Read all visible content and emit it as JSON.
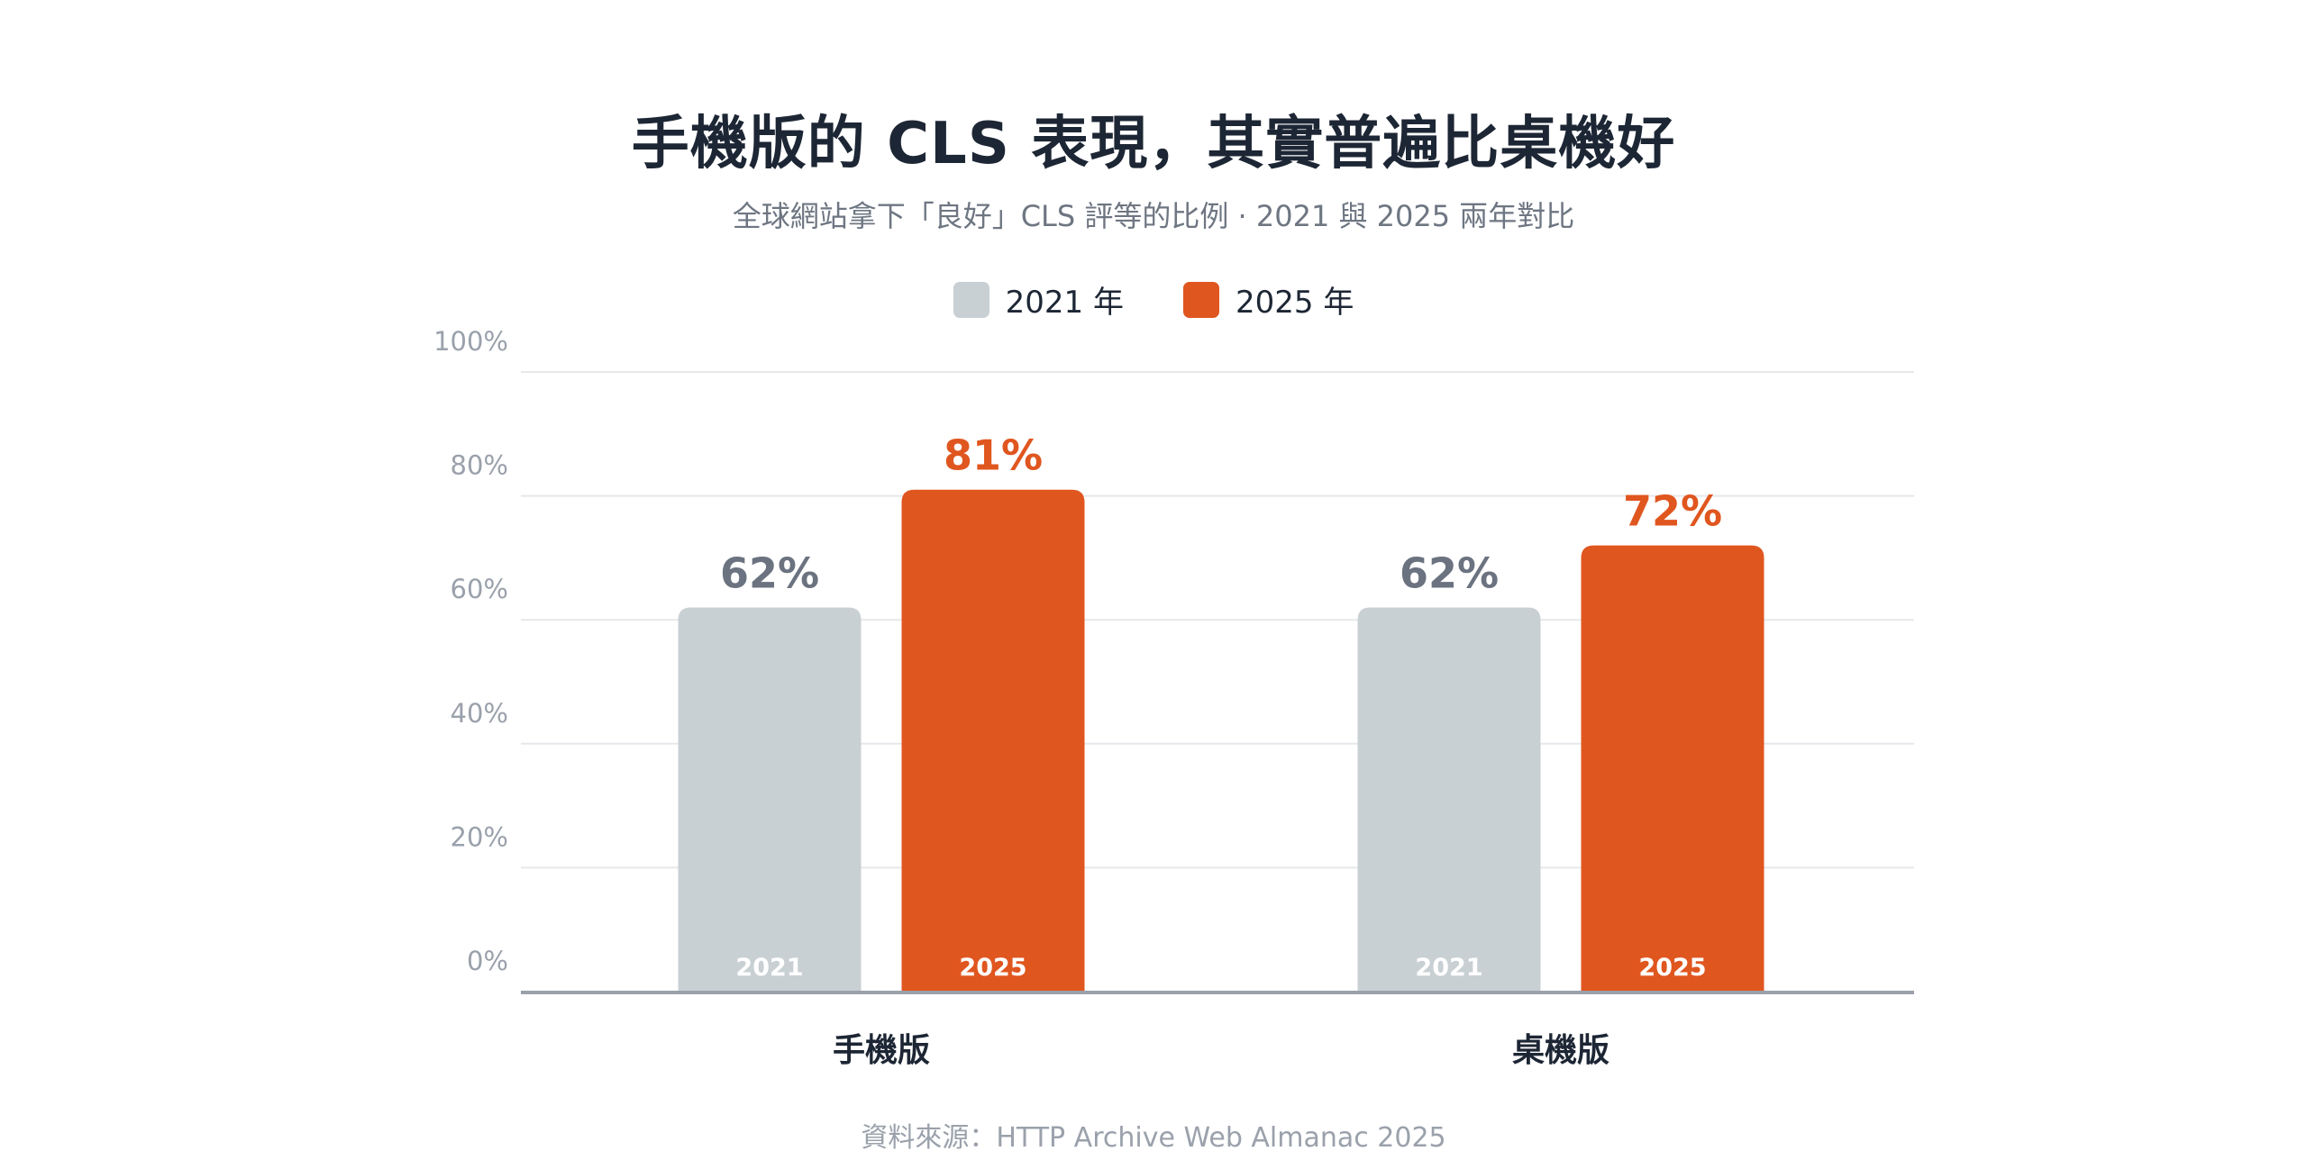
{
  "chart_data": {
    "type": "bar",
    "title": "手機版的 CLS 表現，其實普遍比桌機好",
    "subtitle": "全球網站拿下「良好」CLS 評等的比例 · 2021 與 2025 兩年對比",
    "categories": [
      "手機版",
      "桌機版"
    ],
    "series": [
      {
        "name": "2021 年",
        "bar_label": "2021",
        "color": "#c9d0d4",
        "value_color": "#6b7280",
        "values": [
          62,
          62
        ],
        "value_labels": [
          "62%",
          "62%"
        ]
      },
      {
        "name": "2025 年",
        "bar_label": "2025",
        "color": "#e0561f",
        "value_color": "#e0561f",
        "values": [
          81,
          72
        ],
        "value_labels": [
          "81%",
          "72%"
        ]
      }
    ],
    "y_ticks": [
      "0%",
      "20%",
      "40%",
      "60%",
      "80%",
      "100%"
    ],
    "ylim": [
      0,
      100
    ],
    "grid": true,
    "legend_position": "top-center"
  },
  "footer": {
    "source": "資料來源：HTTP Archive Web Almanac 2025"
  },
  "colors": {
    "title": "#1d2634",
    "subtitle": "#6e7682",
    "axis": "#9aa1ab",
    "gridline": "#e6e8eb"
  }
}
